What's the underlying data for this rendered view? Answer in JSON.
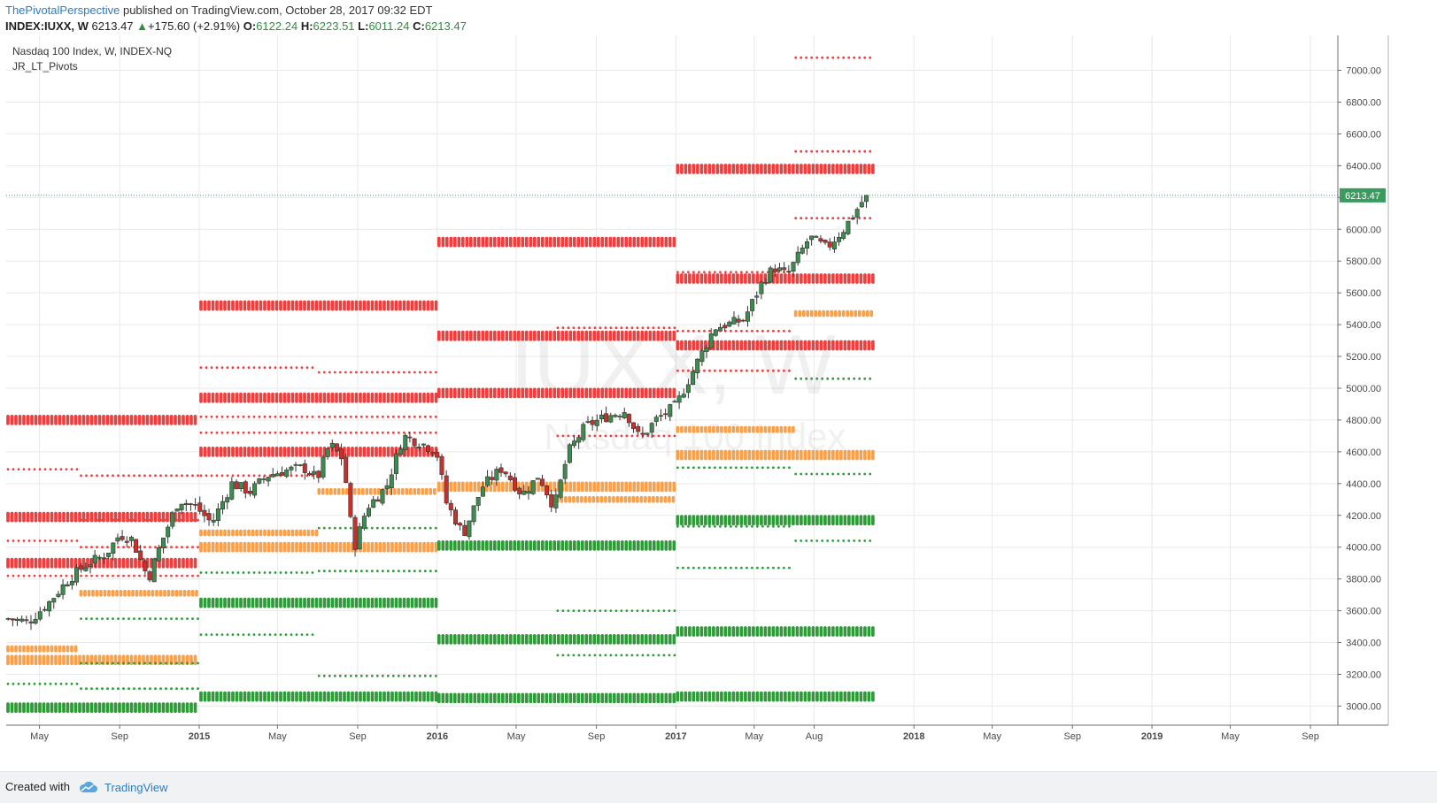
{
  "header": {
    "author": "ThePivotalPerspective",
    "published": "published on TradingView.com, October 28, 2017 09:32 EDT",
    "symbol": "INDEX:IUXX, W",
    "last": "6213.47",
    "change_arrow": "▲",
    "change": "+175.60 (+2.91%)",
    "open_label": "O:",
    "open": "6122.24",
    "high_label": "H:",
    "high": "6223.51",
    "low_label": "L:",
    "low": "6011.24",
    "close_label": "C:",
    "close": "6213.47"
  },
  "chart_title": "Nasdaq 100 Index, W, INDEX-NQ",
  "indicator_name": "JR_LT_Pivots",
  "watermark": {
    "symbol": "IUXX, W",
    "name": "Nasdaq 100 Index"
  },
  "footer": {
    "created": "Created with",
    "brand": "TradingView"
  },
  "colors": {
    "up": "#3d8b4e",
    "down": "#c9302c",
    "pivot_red": "#ef3e3e",
    "pivot_orange": "#fba04a",
    "pivot_green": "#2e9a38",
    "price_label": "#3b9b5e"
  },
  "chart_data": {
    "type": "candlestick",
    "timeframe": "W",
    "ylim": [
      2880,
      7220
    ],
    "yticks": [
      "3000.00",
      "3200.00",
      "3400.00",
      "3600.00",
      "3800.00",
      "4000.00",
      "4200.00",
      "4400.00",
      "4600.00",
      "4800.00",
      "5000.00",
      "5200.00",
      "5400.00",
      "5600.00",
      "5800.00",
      "6000.00",
      "6200.00",
      "6400.00",
      "6600.00",
      "6800.00",
      "7000.00"
    ],
    "last_price_label": "6213.47",
    "last_price": 6213.47,
    "xticks": [
      {
        "label": "May",
        "date": "2014-05-01",
        "bold": false
      },
      {
        "label": "Sep",
        "date": "2014-09-01",
        "bold": false
      },
      {
        "label": "2015",
        "date": "2015-01-01",
        "bold": true
      },
      {
        "label": "May",
        "date": "2015-05-01",
        "bold": false
      },
      {
        "label": "Sep",
        "date": "2015-09-01",
        "bold": false
      },
      {
        "label": "2016",
        "date": "2016-01-01",
        "bold": true
      },
      {
        "label": "May",
        "date": "2016-05-01",
        "bold": false
      },
      {
        "label": "Sep",
        "date": "2016-09-01",
        "bold": false
      },
      {
        "label": "2017",
        "date": "2017-01-01",
        "bold": true
      },
      {
        "label": "May",
        "date": "2017-05-01",
        "bold": false
      },
      {
        "label": "Aug",
        "date": "2017-08-01",
        "bold": false
      },
      {
        "label": "2018",
        "date": "2018-01-01",
        "bold": true
      },
      {
        "label": "May",
        "date": "2018-05-01",
        "bold": false
      },
      {
        "label": "Sep",
        "date": "2018-09-01",
        "bold": false
      },
      {
        "label": "2019",
        "date": "2019-01-01",
        "bold": true
      },
      {
        "label": "May",
        "date": "2019-05-01",
        "bold": false
      },
      {
        "label": "Sep",
        "date": "2019-09-01",
        "bold": false
      }
    ],
    "xlim": [
      "2014-03-11",
      "2019-10-13"
    ],
    "price_anchors": [
      [
        "2014-03-14",
        3550
      ],
      [
        "2014-04-14",
        3530
      ],
      [
        "2014-05-15",
        3650
      ],
      [
        "2014-06-15",
        3800
      ],
      [
        "2014-07-15",
        3900
      ],
      [
        "2014-08-10",
        3950
      ],
      [
        "2014-09-01",
        4080
      ],
      [
        "2014-09-20",
        4050
      ],
      [
        "2014-10-15",
        3800
      ],
      [
        "2014-11-01",
        4000
      ],
      [
        "2014-12-01",
        4300
      ],
      [
        "2014-12-28",
        4250
      ],
      [
        "2015-01-20",
        4150
      ],
      [
        "2015-02-20",
        4400
      ],
      [
        "2015-03-20",
        4350
      ],
      [
        "2015-04-15",
        4450
      ],
      [
        "2015-05-10",
        4480
      ],
      [
        "2015-06-10",
        4500
      ],
      [
        "2015-07-01",
        4430
      ],
      [
        "2015-07-20",
        4650
      ],
      [
        "2015-08-10",
        4550
      ],
      [
        "2015-08-26",
        3990
      ],
      [
        "2015-09-15",
        4250
      ],
      [
        "2015-10-15",
        4380
      ],
      [
        "2015-11-10",
        4700
      ],
      [
        "2015-12-10",
        4650
      ],
      [
        "2015-12-31",
        4600
      ],
      [
        "2016-01-15",
        4280
      ],
      [
        "2016-02-10",
        4080
      ],
      [
        "2016-03-10",
        4380
      ],
      [
        "2016-04-10",
        4500
      ],
      [
        "2016-05-10",
        4330
      ],
      [
        "2016-06-05",
        4450
      ],
      [
        "2016-06-28",
        4250
      ],
      [
        "2016-07-20",
        4600
      ],
      [
        "2016-08-15",
        4760
      ],
      [
        "2016-09-15",
        4820
      ],
      [
        "2016-10-15",
        4860
      ],
      [
        "2016-11-07",
        4680
      ],
      [
        "2016-12-01",
        4800
      ],
      [
        "2017-01-01",
        4890
      ],
      [
        "2017-02-01",
        5150
      ],
      [
        "2017-03-01",
        5380
      ],
      [
        "2017-04-15",
        5430
      ],
      [
        "2017-05-15",
        5680
      ],
      [
        "2017-06-01",
        5760
      ],
      [
        "2017-06-20",
        5710
      ],
      [
        "2017-07-25",
        5950
      ],
      [
        "2017-08-20",
        5880
      ],
      [
        "2017-09-15",
        6000
      ],
      [
        "2017-10-20",
        6213.47
      ]
    ],
    "pivot_levels": [
      {
        "color": "red",
        "weight": "heavy",
        "value": 4800,
        "start": "2014-03-11",
        "end": "2014-12-31"
      },
      {
        "color": "red",
        "weight": "light",
        "value": 4490,
        "start": "2014-03-11",
        "end": "2014-06-30"
      },
      {
        "color": "red",
        "weight": "light",
        "value": 4450,
        "start": "2014-07-01",
        "end": "2014-12-31"
      },
      {
        "color": "red",
        "weight": "heavy",
        "value": 4190,
        "start": "2014-03-11",
        "end": "2014-12-31"
      },
      {
        "color": "red",
        "weight": "light",
        "value": 4170,
        "start": "2014-07-01",
        "end": "2014-12-31"
      },
      {
        "color": "red",
        "weight": "light",
        "value": 4040,
        "start": "2014-03-11",
        "end": "2014-06-30"
      },
      {
        "color": "red",
        "weight": "light",
        "value": 4000,
        "start": "2014-07-01",
        "end": "2014-12-31"
      },
      {
        "color": "red",
        "weight": "heavy",
        "value": 3900,
        "start": "2014-03-11",
        "end": "2014-12-31"
      },
      {
        "color": "red",
        "weight": "light",
        "value": 3820,
        "start": "2014-03-11",
        "end": "2014-06-30"
      },
      {
        "color": "red",
        "weight": "light",
        "value": 3820,
        "start": "2014-07-01",
        "end": "2014-12-31"
      },
      {
        "color": "orange",
        "weight": "medium",
        "value": 3710,
        "start": "2014-07-01",
        "end": "2014-12-31"
      },
      {
        "color": "orange",
        "weight": "medium",
        "value": 3360,
        "start": "2014-03-11",
        "end": "2014-06-30"
      },
      {
        "color": "orange",
        "weight": "heavy",
        "value": 3290,
        "start": "2014-03-11",
        "end": "2014-12-31"
      },
      {
        "color": "green",
        "weight": "light",
        "value": 3550,
        "start": "2014-07-01",
        "end": "2014-12-31"
      },
      {
        "color": "green",
        "weight": "light",
        "value": 3270,
        "start": "2014-07-01",
        "end": "2014-12-31"
      },
      {
        "color": "green",
        "weight": "light",
        "value": 3140,
        "start": "2014-03-11",
        "end": "2014-06-30"
      },
      {
        "color": "green",
        "weight": "light",
        "value": 3110,
        "start": "2014-07-01",
        "end": "2014-12-31"
      },
      {
        "color": "green",
        "weight": "heavy",
        "value": 2990,
        "start": "2014-03-11",
        "end": "2014-12-31"
      },
      {
        "color": "red",
        "weight": "heavy",
        "value": 5520,
        "start": "2015-01-01",
        "end": "2015-12-31"
      },
      {
        "color": "red",
        "weight": "light",
        "value": 5130,
        "start": "2015-01-01",
        "end": "2015-06-30"
      },
      {
        "color": "red",
        "weight": "light",
        "value": 5100,
        "start": "2015-07-01",
        "end": "2015-12-31"
      },
      {
        "color": "red",
        "weight": "heavy",
        "value": 4940,
        "start": "2015-01-01",
        "end": "2015-12-31"
      },
      {
        "color": "red",
        "weight": "light",
        "value": 4820,
        "start": "2015-01-01",
        "end": "2015-06-30"
      },
      {
        "color": "red",
        "weight": "light",
        "value": 4820,
        "start": "2015-07-01",
        "end": "2015-12-31"
      },
      {
        "color": "red",
        "weight": "light",
        "value": 4720,
        "start": "2015-01-01",
        "end": "2015-06-30"
      },
      {
        "color": "red",
        "weight": "light",
        "value": 4720,
        "start": "2015-07-01",
        "end": "2015-12-31"
      },
      {
        "color": "red",
        "weight": "heavy",
        "value": 4600,
        "start": "2015-01-01",
        "end": "2015-12-31"
      },
      {
        "color": "red",
        "weight": "light",
        "value": 4450,
        "start": "2015-01-01",
        "end": "2015-06-30"
      },
      {
        "color": "orange",
        "weight": "medium",
        "value": 4350,
        "start": "2015-07-01",
        "end": "2015-12-31"
      },
      {
        "color": "orange",
        "weight": "medium",
        "value": 4090,
        "start": "2015-01-01",
        "end": "2015-06-30"
      },
      {
        "color": "orange",
        "weight": "heavy",
        "value": 4000,
        "start": "2015-01-01",
        "end": "2015-12-31"
      },
      {
        "color": "green",
        "weight": "light",
        "value": 4120,
        "start": "2015-07-01",
        "end": "2015-12-31"
      },
      {
        "color": "green",
        "weight": "light",
        "value": 3840,
        "start": "2015-01-01",
        "end": "2015-06-30"
      },
      {
        "color": "green",
        "weight": "light",
        "value": 3850,
        "start": "2015-07-01",
        "end": "2015-12-31"
      },
      {
        "color": "green",
        "weight": "heavy",
        "value": 3650,
        "start": "2015-01-01",
        "end": "2015-12-31"
      },
      {
        "color": "green",
        "weight": "light",
        "value": 3450,
        "start": "2015-01-01",
        "end": "2015-06-30"
      },
      {
        "color": "green",
        "weight": "light",
        "value": 3190,
        "start": "2015-07-01",
        "end": "2015-12-31"
      },
      {
        "color": "green",
        "weight": "heavy",
        "value": 3060,
        "start": "2015-01-01",
        "end": "2015-12-31"
      },
      {
        "color": "red",
        "weight": "heavy",
        "value": 5920,
        "start": "2016-01-01",
        "end": "2016-12-31"
      },
      {
        "color": "red",
        "weight": "light",
        "value": 5380,
        "start": "2016-07-01",
        "end": "2016-12-31"
      },
      {
        "color": "red",
        "weight": "heavy",
        "value": 5330,
        "start": "2016-01-01",
        "end": "2016-12-31"
      },
      {
        "color": "red",
        "weight": "heavy",
        "value": 4970,
        "start": "2016-01-01",
        "end": "2016-12-31"
      },
      {
        "color": "red",
        "weight": "light",
        "value": 4700,
        "start": "2016-07-01",
        "end": "2016-12-31"
      },
      {
        "color": "orange",
        "weight": "heavy",
        "value": 4380,
        "start": "2016-01-01",
        "end": "2016-12-31"
      },
      {
        "color": "orange",
        "weight": "medium",
        "value": 4300,
        "start": "2016-07-01",
        "end": "2016-12-31"
      },
      {
        "color": "green",
        "weight": "heavy",
        "value": 4010,
        "start": "2016-01-01",
        "end": "2016-12-31"
      },
      {
        "color": "green",
        "weight": "light",
        "value": 3600,
        "start": "2016-07-01",
        "end": "2016-12-31"
      },
      {
        "color": "green",
        "weight": "heavy",
        "value": 3420,
        "start": "2016-01-01",
        "end": "2016-12-31"
      },
      {
        "color": "green",
        "weight": "light",
        "value": 3320,
        "start": "2016-07-01",
        "end": "2016-12-31"
      },
      {
        "color": "green",
        "weight": "heavy",
        "value": 3050,
        "start": "2016-01-01",
        "end": "2016-12-31"
      },
      {
        "color": "red",
        "weight": "light",
        "value": 7080,
        "start": "2017-07-01",
        "end": "2017-11-01"
      },
      {
        "color": "red",
        "weight": "light",
        "value": 6490,
        "start": "2017-07-01",
        "end": "2017-11-01"
      },
      {
        "color": "red",
        "weight": "heavy",
        "value": 6380,
        "start": "2017-01-01",
        "end": "2017-11-01"
      },
      {
        "color": "red",
        "weight": "light",
        "value": 6070,
        "start": "2017-07-01",
        "end": "2017-11-01"
      },
      {
        "color": "red",
        "weight": "light",
        "value": 5730,
        "start": "2017-01-01",
        "end": "2017-06-30"
      },
      {
        "color": "red",
        "weight": "heavy",
        "value": 5690,
        "start": "2017-01-01",
        "end": "2017-11-01"
      },
      {
        "color": "red",
        "weight": "light",
        "value": 5360,
        "start": "2017-01-01",
        "end": "2017-06-30"
      },
      {
        "color": "red",
        "weight": "heavy",
        "value": 5270,
        "start": "2017-01-01",
        "end": "2017-11-01"
      },
      {
        "color": "red",
        "weight": "light",
        "value": 5110,
        "start": "2017-01-01",
        "end": "2017-06-30"
      },
      {
        "color": "orange",
        "weight": "medium",
        "value": 5470,
        "start": "2017-07-01",
        "end": "2017-11-01"
      },
      {
        "color": "orange",
        "weight": "medium",
        "value": 4740,
        "start": "2017-01-01",
        "end": "2017-06-30"
      },
      {
        "color": "orange",
        "weight": "heavy",
        "value": 4580,
        "start": "2017-01-01",
        "end": "2017-11-01"
      },
      {
        "color": "green",
        "weight": "light",
        "value": 5060,
        "start": "2017-07-01",
        "end": "2017-11-01"
      },
      {
        "color": "green",
        "weight": "light",
        "value": 4500,
        "start": "2017-01-01",
        "end": "2017-06-30"
      },
      {
        "color": "green",
        "weight": "light",
        "value": 4460,
        "start": "2017-07-01",
        "end": "2017-11-01"
      },
      {
        "color": "green",
        "weight": "heavy",
        "value": 4170,
        "start": "2017-01-01",
        "end": "2017-11-01"
      },
      {
        "color": "green",
        "weight": "light",
        "value": 4130,
        "start": "2017-01-01",
        "end": "2017-06-30"
      },
      {
        "color": "green",
        "weight": "light",
        "value": 4040,
        "start": "2017-07-01",
        "end": "2017-11-01"
      },
      {
        "color": "green",
        "weight": "light",
        "value": 3870,
        "start": "2017-01-01",
        "end": "2017-06-30"
      },
      {
        "color": "green",
        "weight": "heavy",
        "value": 3470,
        "start": "2017-01-01",
        "end": "2017-11-01"
      },
      {
        "color": "green",
        "weight": "heavy",
        "value": 3060,
        "start": "2017-01-01",
        "end": "2017-11-01"
      }
    ]
  }
}
